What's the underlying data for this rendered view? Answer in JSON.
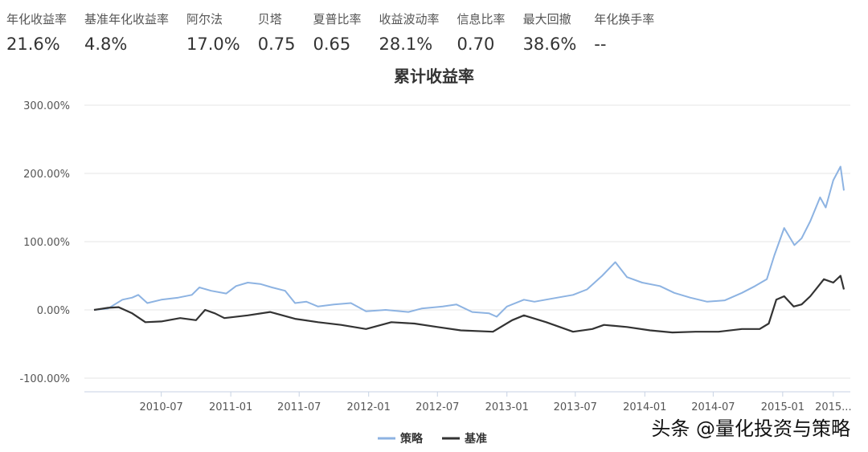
{
  "stats": [
    {
      "label": "年化收益率",
      "value": "21.6%"
    },
    {
      "label": "基准年化收益率",
      "value": "4.8%"
    },
    {
      "label": "阿尔法",
      "value": "17.0%"
    },
    {
      "label": "贝塔",
      "value": "0.75"
    },
    {
      "label": "夏普比率",
      "value": "0.65"
    },
    {
      "label": "收益波动率",
      "value": "28.1%"
    },
    {
      "label": "信息比率",
      "value": "0.70"
    },
    {
      "label": "最大回撤",
      "value": "38.6%"
    },
    {
      "label": "年化换手率",
      "value": "--"
    }
  ],
  "watermark": "头条 @量化投资与策略",
  "chart_data": {
    "type": "line",
    "title": "累计收益率",
    "ylim": [
      -120,
      300
    ],
    "yticks": [
      -100,
      0,
      100,
      200,
      300
    ],
    "ytick_labels": [
      "-100.00%",
      "0.00%",
      "100.00%",
      "200.00%",
      "300.00%"
    ],
    "xlim": [
      "2010-01-04",
      "2015-06-12"
    ],
    "xticks": [
      "2010-07-01",
      "2011-01-01",
      "2011-07-01",
      "2012-01-01",
      "2012-07-01",
      "2013-01-01",
      "2013-07-01",
      "2014-01-01",
      "2014-07-01",
      "2015-01-01",
      "2015-05-15"
    ],
    "xtick_labels": [
      "2010-07",
      "2011-01",
      "2011-07",
      "2012-01",
      "2012-07",
      "2013-01",
      "2013-07",
      "2014-01",
      "2014-07",
      "2015-01",
      "2015..."
    ],
    "grid": true,
    "legend_position": "bottom-center",
    "series": [
      {
        "name": "策略",
        "color": "#8db3e2",
        "points": [
          [
            "2010-01-04",
            0
          ],
          [
            "2010-02-10",
            2
          ],
          [
            "2010-03-20",
            15
          ],
          [
            "2010-04-15",
            18
          ],
          [
            "2010-05-01",
            22
          ],
          [
            "2010-05-25",
            10
          ],
          [
            "2010-07-01",
            15
          ],
          [
            "2010-08-15",
            18
          ],
          [
            "2010-09-20",
            22
          ],
          [
            "2010-10-10",
            33
          ],
          [
            "2010-11-10",
            28
          ],
          [
            "2010-12-20",
            24
          ],
          [
            "2011-01-15",
            35
          ],
          [
            "2011-02-15",
            40
          ],
          [
            "2011-03-20",
            38
          ],
          [
            "2011-04-20",
            33
          ],
          [
            "2011-05-25",
            28
          ],
          [
            "2011-06-20",
            10
          ],
          [
            "2011-07-20",
            12
          ],
          [
            "2011-08-20",
            5
          ],
          [
            "2011-10-01",
            8
          ],
          [
            "2011-11-15",
            10
          ],
          [
            "2011-12-25",
            -2
          ],
          [
            "2012-02-15",
            0
          ],
          [
            "2012-04-15",
            -3
          ],
          [
            "2012-05-20",
            2
          ],
          [
            "2012-07-15",
            5
          ],
          [
            "2012-08-20",
            8
          ],
          [
            "2012-10-01",
            -3
          ],
          [
            "2012-11-15",
            -5
          ],
          [
            "2012-12-05",
            -10
          ],
          [
            "2013-01-01",
            5
          ],
          [
            "2013-02-15",
            15
          ],
          [
            "2013-03-15",
            12
          ],
          [
            "2013-05-15",
            18
          ],
          [
            "2013-06-25",
            22
          ],
          [
            "2013-08-01",
            30
          ],
          [
            "2013-09-10",
            50
          ],
          [
            "2013-10-15",
            70
          ],
          [
            "2013-11-15",
            48
          ],
          [
            "2013-12-25",
            40
          ],
          [
            "2014-02-10",
            35
          ],
          [
            "2014-03-20",
            25
          ],
          [
            "2014-05-01",
            18
          ],
          [
            "2014-06-15",
            12
          ],
          [
            "2014-08-01",
            14
          ],
          [
            "2014-09-15",
            25
          ],
          [
            "2014-10-20",
            35
          ],
          [
            "2014-11-20",
            45
          ],
          [
            "2014-12-10",
            80
          ],
          [
            "2015-01-05",
            120
          ],
          [
            "2015-02-01",
            95
          ],
          [
            "2015-02-20",
            105
          ],
          [
            "2015-03-15",
            130
          ],
          [
            "2015-04-10",
            165
          ],
          [
            "2015-04-25",
            150
          ],
          [
            "2015-05-15",
            190
          ],
          [
            "2015-06-03",
            210
          ],
          [
            "2015-06-12",
            175
          ]
        ]
      },
      {
        "name": "基准",
        "color": "#333333",
        "points": [
          [
            "2010-01-04",
            0
          ],
          [
            "2010-02-10",
            3
          ],
          [
            "2010-03-10",
            4
          ],
          [
            "2010-04-15",
            -5
          ],
          [
            "2010-05-20",
            -18
          ],
          [
            "2010-07-01",
            -17
          ],
          [
            "2010-08-20",
            -12
          ],
          [
            "2010-10-01",
            -15
          ],
          [
            "2010-10-25",
            0
          ],
          [
            "2010-11-20",
            -5
          ],
          [
            "2010-12-15",
            -12
          ],
          [
            "2011-02-15",
            -8
          ],
          [
            "2011-04-15",
            -3
          ],
          [
            "2011-06-20",
            -13
          ],
          [
            "2011-08-20",
            -18
          ],
          [
            "2011-10-20",
            -22
          ],
          [
            "2011-12-25",
            -28
          ],
          [
            "2012-03-01",
            -18
          ],
          [
            "2012-05-01",
            -20
          ],
          [
            "2012-07-01",
            -25
          ],
          [
            "2012-09-01",
            -30
          ],
          [
            "2012-11-25",
            -32
          ],
          [
            "2013-01-15",
            -15
          ],
          [
            "2013-02-15",
            -8
          ],
          [
            "2013-04-15",
            -18
          ],
          [
            "2013-06-25",
            -32
          ],
          [
            "2013-08-15",
            -28
          ],
          [
            "2013-09-15",
            -22
          ],
          [
            "2013-11-15",
            -25
          ],
          [
            "2014-01-15",
            -30
          ],
          [
            "2014-03-15",
            -33
          ],
          [
            "2014-05-15",
            -32
          ],
          [
            "2014-07-15",
            -32
          ],
          [
            "2014-09-15",
            -28
          ],
          [
            "2014-11-01",
            -28
          ],
          [
            "2014-11-25",
            -20
          ],
          [
            "2014-12-15",
            15
          ],
          [
            "2015-01-05",
            20
          ],
          [
            "2015-01-30",
            5
          ],
          [
            "2015-02-20",
            8
          ],
          [
            "2015-03-15",
            20
          ],
          [
            "2015-04-20",
            45
          ],
          [
            "2015-05-15",
            40
          ],
          [
            "2015-06-03",
            50
          ],
          [
            "2015-06-12",
            30
          ]
        ]
      }
    ]
  }
}
